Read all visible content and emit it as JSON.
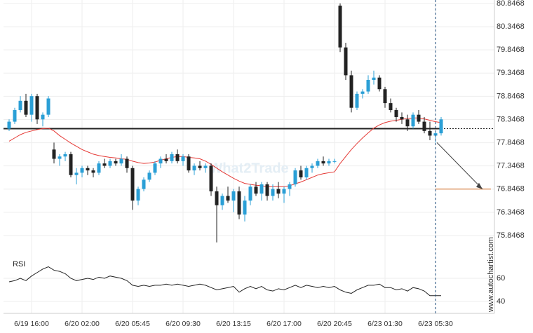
{
  "chart_data": [
    {
      "type": "candlestick",
      "categories": [
        null,
        null,
        null,
        null,
        "6/19 16:00",
        null,
        null,
        null,
        null,
        null,
        null,
        null,
        null,
        "6/20 02:00",
        null,
        null,
        null,
        null,
        null,
        null,
        null,
        null,
        "6/20 05:45",
        null,
        null,
        null,
        null,
        null,
        null,
        null,
        null,
        "6/20 09:30",
        null,
        null,
        null,
        null,
        null,
        null,
        null,
        null,
        "6/20 13:15",
        null,
        null,
        null,
        null,
        null,
        null,
        null,
        null,
        "6/20 17:00",
        null,
        null,
        null,
        null,
        null,
        null,
        null,
        null,
        "6/20 20:45",
        null,
        null,
        null,
        null,
        null,
        null,
        null,
        null,
        "6/23 01:30",
        null,
        null,
        null,
        null,
        null,
        null,
        null,
        null,
        "6/23 05:30",
        null
      ],
      "open": [
        78.15,
        78.3,
        78.55,
        78.75,
        78.45,
        78.85,
        78.35,
        78.45,
        77.7,
        77.5,
        77.55,
        77.6,
        77.15,
        77.2,
        77.3,
        77.25,
        77.2,
        77.4,
        77.35,
        77.45,
        77.4,
        77.5,
        77.3,
        76.6,
        76.85,
        77.05,
        77.2,
        77.4,
        77.5,
        77.45,
        77.6,
        77.45,
        77.55,
        77.25,
        77.35,
        77.3,
        77.35,
        76.8,
        76.5,
        76.7,
        76.6,
        76.8,
        76.3,
        76.6,
        76.9,
        76.75,
        76.95,
        76.7,
        76.85,
        76.75,
        76.85,
        76.95,
        77.25,
        77.1,
        77.3,
        77.35,
        77.45,
        77.4,
        77.45,
        80.8,
        79.9,
        79.3,
        78.6,
        78.9,
        78.95,
        79.2,
        79.25,
        79.0,
        78.7,
        78.55,
        78.4,
        78.35,
        78.2,
        78.45,
        78.3,
        78.1,
        78.0,
        78.05
      ],
      "high": [
        78.35,
        78.6,
        78.85,
        78.9,
        78.9,
        78.9,
        78.5,
        78.85,
        77.85,
        77.6,
        77.65,
        77.65,
        77.3,
        77.35,
        77.35,
        77.3,
        77.45,
        77.5,
        77.5,
        77.5,
        77.6,
        77.55,
        77.35,
        76.9,
        77.1,
        77.25,
        77.45,
        77.55,
        77.6,
        77.65,
        77.7,
        77.6,
        77.6,
        77.4,
        77.45,
        77.4,
        77.4,
        76.9,
        76.75,
        76.9,
        76.85,
        76.9,
        76.7,
        76.95,
        77.0,
        77.0,
        77.0,
        76.95,
        77.0,
        76.9,
        77.0,
        77.3,
        77.35,
        77.35,
        77.4,
        77.5,
        77.55,
        77.5,
        77.5,
        80.85,
        80.0,
        79.4,
        78.95,
        79.0,
        79.3,
        79.4,
        79.3,
        79.05,
        78.8,
        78.6,
        78.5,
        78.45,
        78.5,
        78.55,
        78.4,
        78.3,
        78.1,
        78.4
      ],
      "low": [
        78.1,
        78.25,
        78.5,
        78.4,
        78.3,
        78.25,
        78.2,
        78.4,
        77.4,
        77.35,
        77.45,
        77.1,
        76.95,
        77.1,
        77.15,
        77.1,
        77.15,
        77.3,
        77.3,
        77.35,
        77.35,
        77.2,
        76.4,
        76.5,
        76.8,
        77.0,
        77.15,
        77.3,
        77.4,
        77.4,
        77.4,
        77.35,
        77.2,
        77.15,
        77.25,
        77.2,
        76.7,
        75.7,
        76.4,
        76.55,
        76.35,
        76.2,
        76.15,
        76.5,
        76.7,
        76.6,
        76.6,
        76.6,
        76.65,
        76.55,
        76.7,
        76.9,
        77.05,
        77.05,
        77.2,
        77.3,
        77.35,
        77.35,
        77.4,
        79.8,
        79.2,
        78.5,
        78.55,
        78.8,
        78.9,
        79.1,
        78.95,
        78.6,
        78.5,
        78.3,
        78.25,
        78.1,
        78.15,
        78.25,
        78.05,
        77.9,
        77.85,
        78.0
      ],
      "close": [
        78.3,
        78.55,
        78.75,
        78.45,
        78.85,
        78.35,
        78.45,
        78.8,
        77.5,
        77.55,
        77.6,
        77.15,
        77.2,
        77.3,
        77.25,
        77.2,
        77.4,
        77.35,
        77.45,
        77.4,
        77.5,
        77.3,
        76.6,
        76.85,
        77.05,
        77.2,
        77.4,
        77.5,
        77.45,
        77.6,
        77.45,
        77.55,
        77.25,
        77.35,
        77.3,
        77.35,
        76.8,
        76.5,
        76.7,
        76.6,
        76.8,
        76.3,
        76.6,
        76.9,
        76.75,
        76.95,
        76.7,
        76.85,
        76.75,
        76.85,
        76.95,
        77.25,
        77.1,
        77.3,
        77.35,
        77.45,
        77.4,
        77.45,
        77.45,
        79.9,
        79.3,
        78.6,
        78.9,
        78.95,
        79.2,
        79.25,
        79.0,
        78.7,
        78.55,
        78.4,
        78.35,
        78.2,
        78.45,
        78.3,
        78.1,
        78.0,
        78.05,
        78.35
      ],
      "up_color": "#2a9fd6",
      "down_color": "#222222",
      "overlay": {
        "color": "#e53935",
        "values": [
          77.88,
          77.95,
          78.02,
          78.07,
          78.1,
          78.13,
          78.15,
          78.16,
          78.1,
          78.0,
          77.92,
          77.84,
          77.77,
          77.7,
          77.65,
          77.6,
          77.57,
          77.55,
          77.53,
          77.52,
          77.5,
          77.49,
          77.45,
          77.42,
          77.4,
          77.41,
          77.43,
          77.47,
          77.5,
          77.53,
          77.55,
          77.55,
          77.53,
          77.52,
          77.5,
          77.45,
          77.38,
          77.3,
          77.22,
          77.15,
          77.08,
          77.02,
          76.97,
          76.95,
          76.93,
          76.92,
          76.9,
          76.9,
          76.9,
          76.9,
          76.92,
          76.96,
          77.0,
          77.05,
          77.1,
          77.15,
          77.18,
          77.2,
          77.22,
          77.4,
          77.55,
          77.7,
          77.83,
          77.95,
          78.06,
          78.16,
          78.23,
          78.28,
          78.31,
          78.33,
          78.35,
          78.37,
          78.38,
          78.38,
          78.36,
          78.33,
          78.3,
          78.28
        ]
      },
      "resistance": 78.15,
      "target": 76.8468,
      "ylim": [
        75.635,
        80.922
      ],
      "yticks": [
        80.8468,
        80.3468,
        79.8468,
        79.3468,
        78.8468,
        78.3468,
        77.8468,
        77.3468,
        76.8468,
        76.3468,
        75.8468
      ],
      "grid": true,
      "watermark": "What2Trade",
      "source": "www.autochartist.com"
    },
    {
      "type": "line",
      "title": "RSI",
      "color": "#222222",
      "values": [
        57,
        58,
        60,
        58,
        62,
        65,
        68,
        70,
        67,
        66,
        64,
        60,
        58,
        59,
        60,
        59,
        61,
        60,
        62,
        61,
        60,
        58,
        54,
        53,
        54,
        53,
        54,
        54,
        55,
        54,
        55,
        54,
        53,
        54,
        55,
        54,
        52,
        50,
        51,
        52,
        53,
        48,
        51,
        53,
        51,
        53,
        50,
        49,
        51,
        50,
        52,
        54,
        52,
        54,
        53,
        52,
        53,
        52,
        53,
        50,
        48,
        47,
        50,
        52,
        54,
        54,
        55,
        52,
        52,
        50,
        51,
        49,
        52,
        51,
        49,
        45,
        45,
        45
      ],
      "ylim": [
        30,
        80
      ],
      "yticks": [
        60,
        40
      ]
    }
  ]
}
